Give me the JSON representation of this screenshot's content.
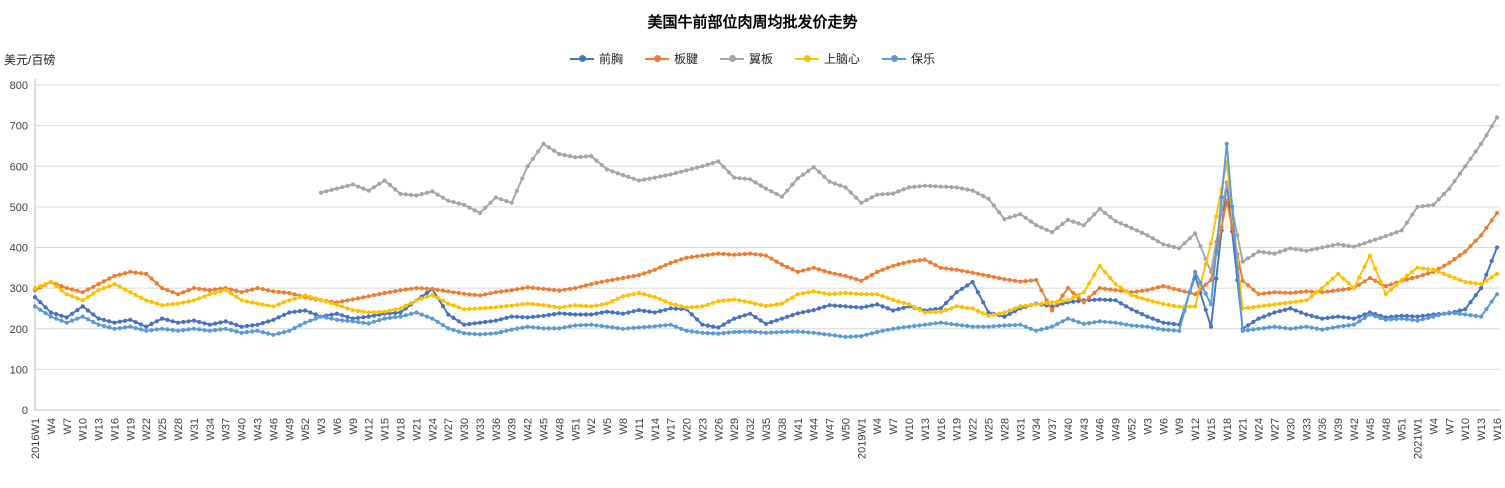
{
  "chart_data": {
    "type": "line",
    "title": "美国牛前部位肉周均批发价走势",
    "unit_label": "美元/百磅",
    "ylim": [
      0,
      800
    ],
    "ytick_step": 100,
    "grid": true,
    "legend_position": "top",
    "categories": [
      "2016W1",
      "W4",
      "W7",
      "W10",
      "W13",
      "W16",
      "W19",
      "W22",
      "W25",
      "W28",
      "W31",
      "W34",
      "W37",
      "W40",
      "W43",
      "W46",
      "W49",
      "W52",
      "W3",
      "W6",
      "W9",
      "W12",
      "W15",
      "W18",
      "W21",
      "W24",
      "W27",
      "W30",
      "W33",
      "W36",
      "W39",
      "W42",
      "W45",
      "W48",
      "W51",
      "W2",
      "W5",
      "W8",
      "W11",
      "W14",
      "W17",
      "W20",
      "W23",
      "W26",
      "W29",
      "W32",
      "W35",
      "W38",
      "W41",
      "W44",
      "W47",
      "W50",
      "2019W1",
      "W4",
      "W7",
      "W10",
      "W13",
      "W16",
      "W19",
      "W22",
      "W25",
      "W28",
      "W31",
      "W34",
      "W37",
      "W40",
      "W43",
      "W46",
      "W49",
      "W52",
      "W3",
      "W6",
      "W9",
      "W12",
      "W15",
      "W18",
      "W21",
      "W24",
      "W27",
      "W30",
      "W33",
      "W36",
      "W39",
      "W42",
      "W45",
      "W48",
      "W51",
      "2021W1",
      "W4",
      "W7",
      "W10",
      "W13",
      "W16"
    ],
    "series": [
      {
        "name": "前胸",
        "color": "#4472C4",
        "values": [
          278,
          240,
          228,
          255,
          225,
          215,
          222,
          205,
          225,
          215,
          220,
          210,
          218,
          205,
          210,
          222,
          240,
          245,
          230,
          237,
          225,
          230,
          237,
          240,
          270,
          297,
          235,
          210,
          215,
          220,
          230,
          228,
          232,
          238,
          235,
          235,
          242,
          237,
          246,
          240,
          250,
          248,
          210,
          203,
          225,
          237,
          212,
          225,
          238,
          246,
          258,
          255,
          252,
          260,
          245,
          255,
          245,
          250,
          290,
          315,
          240,
          230,
          250,
          262,
          255,
          265,
          270,
          272,
          270,
          248,
          230,
          215,
          210,
          330,
          205,
          560,
          200,
          225,
          240,
          250,
          235,
          225,
          230,
          225,
          240,
          228,
          232,
          230,
          235,
          238,
          248,
          300,
          400
        ]
      },
      {
        "name": "板腱",
        "color": "#ED7D31",
        "values": [
          295,
          315,
          300,
          290,
          310,
          330,
          340,
          335,
          300,
          285,
          300,
          295,
          300,
          290,
          300,
          292,
          288,
          278,
          270,
          265,
          272,
          280,
          288,
          295,
          300,
          298,
          292,
          286,
          282,
          290,
          295,
          302,
          298,
          294,
          300,
          310,
          318,
          325,
          332,
          345,
          362,
          375,
          380,
          385,
          382,
          385,
          380,
          358,
          340,
          350,
          338,
          330,
          318,
          340,
          355,
          365,
          370,
          350,
          345,
          338,
          330,
          322,
          316,
          320,
          245,
          300,
          265,
          300,
          295,
          290,
          295,
          305,
          295,
          285,
          320,
          515,
          318,
          285,
          290,
          288,
          292,
          290,
          295,
          300,
          325,
          305,
          318,
          328,
          340,
          362,
          390,
          430,
          485
        ]
      },
      {
        "name": "翼板",
        "color": "#A5A5A5",
        "values": [
          null,
          null,
          null,
          null,
          null,
          null,
          null,
          null,
          null,
          null,
          null,
          null,
          null,
          null,
          null,
          null,
          null,
          null,
          535,
          545,
          555,
          540,
          565,
          532,
          528,
          538,
          515,
          505,
          485,
          523,
          510,
          600,
          655,
          630,
          622,
          625,
          592,
          578,
          565,
          572,
          580,
          590,
          600,
          612,
          572,
          568,
          545,
          525,
          570,
          598,
          562,
          548,
          510,
          530,
          533,
          548,
          552,
          550,
          548,
          540,
          520,
          470,
          482,
          455,
          438,
          468,
          455,
          495,
          465,
          448,
          430,
          408,
          398,
          435,
          340,
          560,
          365,
          390,
          385,
          398,
          392,
          400,
          408,
          402,
          415,
          428,
          442,
          500,
          505,
          545,
          600,
          655,
          720
        ]
      },
      {
        "name": "上脑心",
        "color": "#FFC000",
        "values": [
          300,
          315,
          285,
          270,
          295,
          310,
          290,
          270,
          258,
          262,
          270,
          285,
          295,
          270,
          262,
          255,
          270,
          282,
          271,
          259,
          246,
          240,
          242,
          250,
          270,
          283,
          262,
          248,
          250,
          253,
          257,
          262,
          258,
          252,
          258,
          255,
          262,
          280,
          288,
          278,
          262,
          252,
          255,
          268,
          272,
          265,
          256,
          262,
          285,
          292,
          285,
          288,
          285,
          285,
          271,
          260,
          240,
          242,
          255,
          250,
          232,
          240,
          255,
          260,
          265,
          270,
          290,
          355,
          310,
          283,
          271,
          261,
          254,
          255,
          410,
          610,
          250,
          255,
          260,
          265,
          270,
          300,
          335,
          300,
          380,
          285,
          320,
          350,
          345,
          330,
          315,
          310,
          335
        ]
      },
      {
        "name": "保乐",
        "color": "#5B9BD5",
        "values": [
          255,
          230,
          215,
          230,
          210,
          200,
          205,
          195,
          200,
          195,
          200,
          195,
          200,
          190,
          195,
          185,
          195,
          215,
          230,
          222,
          218,
          213,
          225,
          230,
          240,
          225,
          201,
          189,
          186,
          189,
          198,
          205,
          201,
          201,
          208,
          210,
          205,
          200,
          203,
          206,
          210,
          195,
          190,
          188,
          192,
          193,
          190,
          192,
          193,
          190,
          185,
          180,
          182,
          192,
          200,
          205,
          210,
          215,
          210,
          205,
          205,
          208,
          210,
          195,
          205,
          225,
          212,
          218,
          215,
          208,
          205,
          198,
          195,
          340,
          260,
          655,
          195,
          200,
          205,
          200,
          205,
          198,
          205,
          210,
          235,
          222,
          225,
          220,
          230,
          240,
          235,
          230,
          285
        ]
      }
    ],
    "colors": {
      "gridline": "#D9D9D9",
      "axis_line": "#BFBFBF",
      "tick_label": "#404040"
    }
  }
}
